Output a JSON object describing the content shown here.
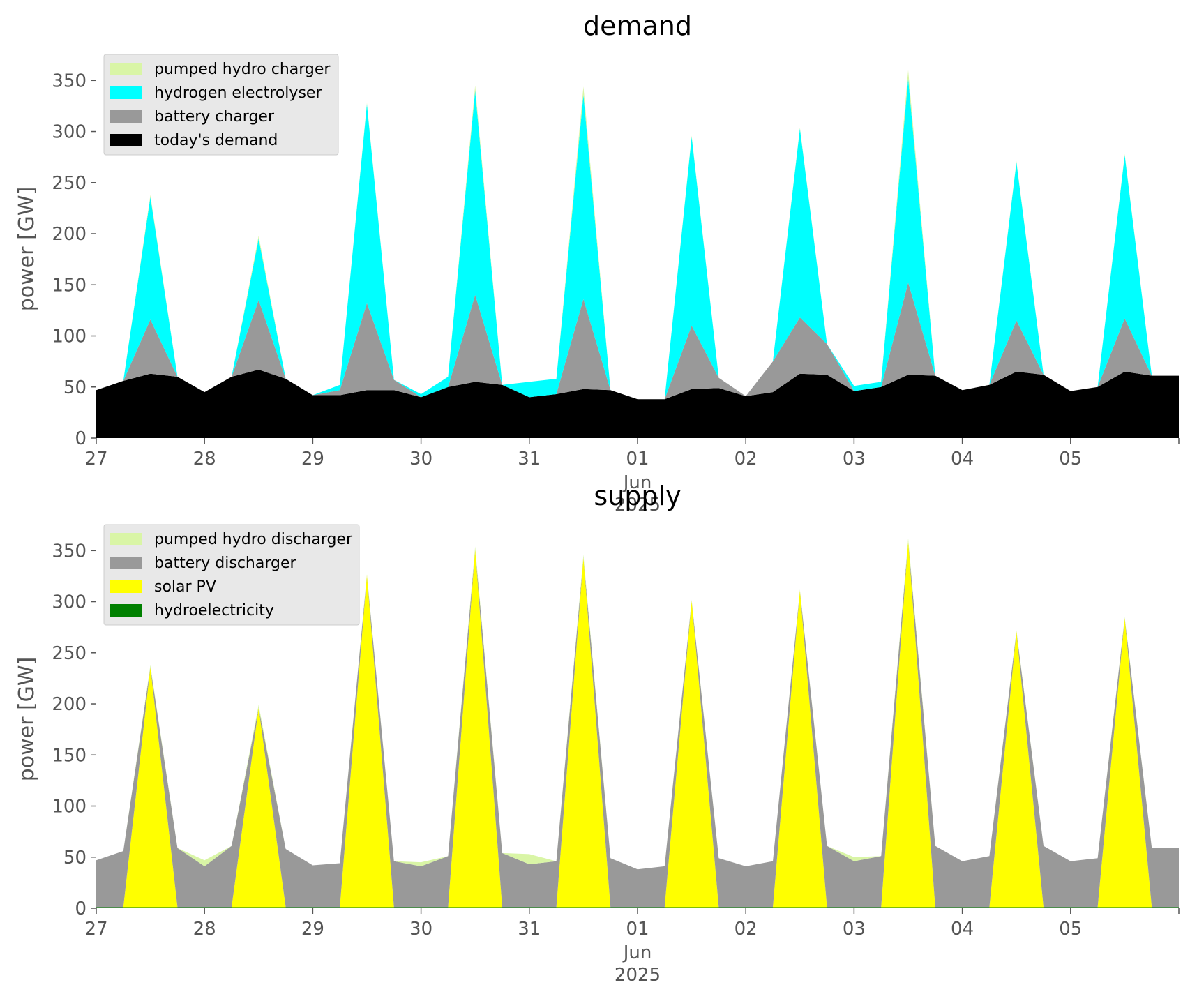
{
  "chart_data": [
    {
      "type": "area",
      "title": "demand",
      "ylabel": "power [GW]",
      "xlabel": "",
      "ylim": [
        0,
        370
      ],
      "yticks": [
        0,
        50,
        100,
        150,
        200,
        250,
        300,
        350
      ],
      "x_start": "2025-05-27T00:00",
      "x_step_hours": 6,
      "x_end": "2025-06-06T00:00",
      "xticks": [
        {
          "date": "2025-05-27",
          "label": "27",
          "sub": ""
        },
        {
          "date": "2025-05-28",
          "label": "28",
          "sub": ""
        },
        {
          "date": "2025-05-29",
          "label": "29",
          "sub": ""
        },
        {
          "date": "2025-05-30",
          "label": "30",
          "sub": ""
        },
        {
          "date": "2025-05-31",
          "label": "31",
          "sub": ""
        },
        {
          "date": "2025-06-01",
          "label": "01",
          "sub": "Jun\n2025"
        },
        {
          "date": "2025-06-02",
          "label": "02",
          "sub": ""
        },
        {
          "date": "2025-06-03",
          "label": "03",
          "sub": ""
        },
        {
          "date": "2025-06-04",
          "label": "04",
          "sub": ""
        },
        {
          "date": "2025-06-05",
          "label": "05",
          "sub": ""
        }
      ],
      "stacked": true,
      "legend_position": "top-left",
      "grid": false,
      "series": [
        {
          "name": "today's demand",
          "color": "#000000",
          "values": [
            47,
            56,
            63,
            60,
            45,
            60,
            67,
            58,
            42,
            42,
            47,
            47,
            40,
            50,
            55,
            52,
            40,
            43,
            48,
            47,
            38,
            38,
            48,
            49,
            41,
            45,
            63,
            62,
            46,
            50,
            62,
            61,
            47,
            52,
            65,
            62,
            46,
            50,
            65,
            61
          ]
        },
        {
          "name": "battery charger",
          "color": "#999999",
          "values": [
            0,
            0,
            53,
            0,
            0,
            0,
            68,
            0,
            0,
            5,
            85,
            10,
            0,
            0,
            85,
            0,
            0,
            0,
            88,
            0,
            0,
            0,
            62,
            10,
            0,
            30,
            55,
            30,
            0,
            0,
            90,
            0,
            0,
            0,
            50,
            0,
            0,
            0,
            52,
            0
          ]
        },
        {
          "name": "hydrogen electrolyser",
          "color": "#00ffff",
          "values": [
            0,
            0,
            120,
            0,
            0,
            0,
            60,
            0,
            0,
            5,
            195,
            0,
            3,
            10,
            200,
            0,
            15,
            15,
            200,
            0,
            0,
            0,
            185,
            0,
            0,
            0,
            185,
            0,
            5,
            5,
            200,
            0,
            0,
            0,
            155,
            0,
            0,
            0,
            160,
            0
          ]
        },
        {
          "name": "pumped hydro charger",
          "color": "#d9f5a6",
          "values": [
            0,
            0,
            2,
            0,
            0,
            0,
            3,
            0,
            0,
            0,
            1,
            0,
            0,
            0,
            5,
            0,
            0,
            0,
            8,
            0,
            0,
            0,
            1,
            0,
            0,
            0,
            1,
            0,
            0,
            0,
            8,
            0,
            0,
            0,
            1,
            0,
            0,
            0,
            1,
            0
          ]
        }
      ]
    },
    {
      "type": "area",
      "title": "supply",
      "ylabel": "power [GW]",
      "xlabel": "",
      "ylim": [
        0,
        370
      ],
      "yticks": [
        0,
        50,
        100,
        150,
        200,
        250,
        300,
        350
      ],
      "x_start": "2025-05-27T00:00",
      "x_step_hours": 6,
      "x_end": "2025-06-06T00:00",
      "xticks": [
        {
          "date": "2025-05-27",
          "label": "27",
          "sub": ""
        },
        {
          "date": "2025-05-28",
          "label": "28",
          "sub": ""
        },
        {
          "date": "2025-05-29",
          "label": "29",
          "sub": ""
        },
        {
          "date": "2025-05-30",
          "label": "30",
          "sub": ""
        },
        {
          "date": "2025-05-31",
          "label": "31",
          "sub": ""
        },
        {
          "date": "2025-06-01",
          "label": "01",
          "sub": "Jun\n2025"
        },
        {
          "date": "2025-06-02",
          "label": "02",
          "sub": ""
        },
        {
          "date": "2025-06-03",
          "label": "03",
          "sub": ""
        },
        {
          "date": "2025-06-04",
          "label": "04",
          "sub": ""
        },
        {
          "date": "2025-06-05",
          "label": "05",
          "sub": ""
        }
      ],
      "stacked": true,
      "legend_position": "top-left",
      "grid": false,
      "series": [
        {
          "name": "hydroelectricity",
          "color": "#008000",
          "values": [
            1,
            1,
            1,
            1,
            1,
            1,
            1,
            1,
            1,
            1,
            1,
            1,
            1,
            1,
            1,
            1,
            1,
            1,
            1,
            1,
            1,
            1,
            1,
            1,
            1,
            1,
            1,
            1,
            1,
            1,
            1,
            1,
            1,
            1,
            1,
            1,
            1,
            1,
            1,
            1
          ]
        },
        {
          "name": "solar PV",
          "color": "#ffff00",
          "values": [
            0,
            0,
            235,
            0,
            0,
            0,
            195,
            0,
            0,
            0,
            325,
            0,
            0,
            0,
            350,
            0,
            0,
            0,
            342,
            0,
            0,
            0,
            300,
            0,
            0,
            0,
            310,
            0,
            0,
            0,
            358,
            0,
            0,
            0,
            270,
            0,
            0,
            0,
            283,
            0
          ]
        },
        {
          "name": "battery discharger",
          "color": "#999999",
          "values": [
            46,
            55,
            0,
            58,
            40,
            60,
            0,
            57,
            41,
            43,
            0,
            45,
            40,
            50,
            0,
            53,
            42,
            45,
            0,
            48,
            37,
            40,
            0,
            48,
            40,
            45,
            0,
            60,
            45,
            50,
            0,
            60,
            45,
            50,
            0,
            60,
            45,
            48,
            0,
            58
          ]
        },
        {
          "name": "pumped hydro discharger",
          "color": "#d9f5a6",
          "values": [
            0,
            0,
            2,
            0,
            6,
            0,
            3,
            0,
            0,
            0,
            1,
            0,
            4,
            0,
            3,
            0,
            10,
            0,
            3,
            0,
            0,
            0,
            1,
            0,
            0,
            0,
            1,
            0,
            4,
            0,
            3,
            0,
            0,
            0,
            1,
            0,
            0,
            0,
            1,
            0
          ]
        }
      ]
    }
  ],
  "legends": [
    [
      "pumped hydro charger",
      "hydrogen electrolyser",
      "battery charger",
      "today's demand"
    ],
    [
      "pumped hydro discharger",
      "battery discharger",
      "solar PV",
      "hydroelectricity"
    ]
  ]
}
